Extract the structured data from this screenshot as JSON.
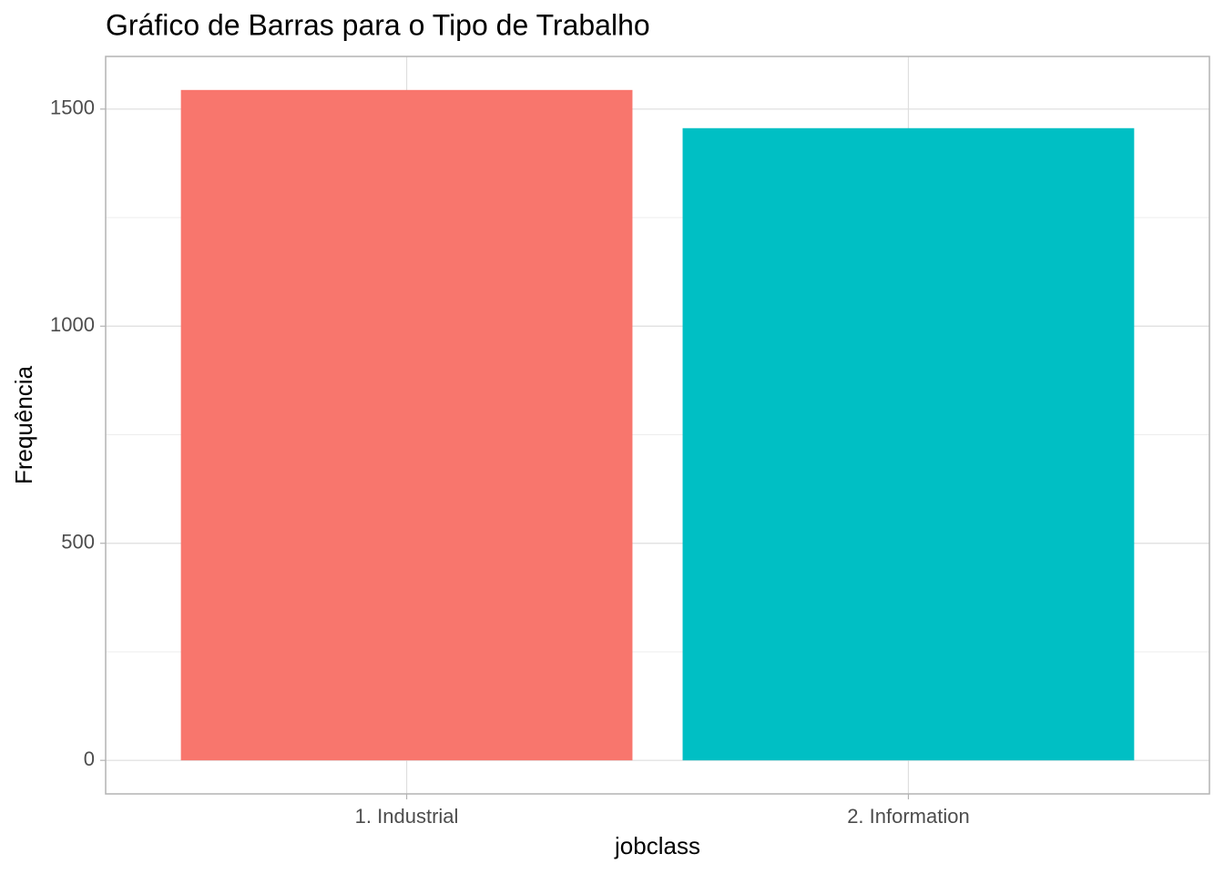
{
  "chart_data": {
    "type": "bar",
    "title": "Gráfico de Barras para o Tipo de Trabalho",
    "x_label": "jobclass",
    "y_label": "Frequência",
    "categories": [
      "1. Industrial",
      "2. Information"
    ],
    "series": [
      {
        "name": "jobclass",
        "colors": [
          "#f8766d",
          "#00bfc4"
        ],
        "values": [
          1544,
          1456
        ]
      }
    ],
    "ylim": [
      -77.2,
      1621.2
    ],
    "yticks": [
      0,
      500,
      1000,
      1500
    ],
    "yminorticks": [
      250,
      750,
      1250
    ],
    "grid": true,
    "legend": false
  }
}
